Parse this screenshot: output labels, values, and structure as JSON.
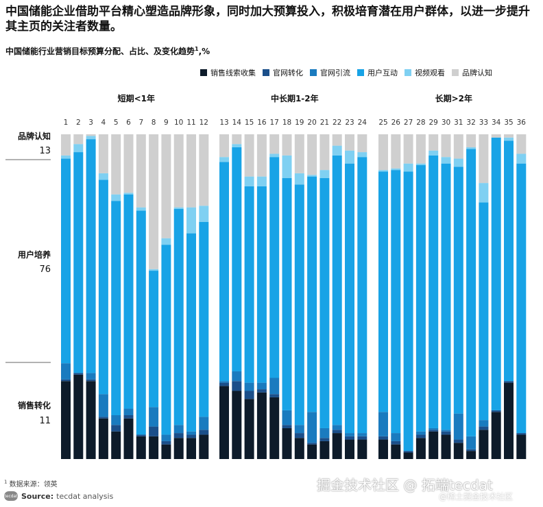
{
  "headline": "中国储能企业借助平台精心塑造品牌形象，同时加大预算投入，积极培育潜在用户群体，以进一步提升其主页的关注者数量。",
  "subtitle": "中国储能行业营销目标预算分配、占比、及变化趋势",
  "subtitle_sup": "1",
  "subtitle_unit": ",%",
  "footnote_mark": "1",
  "footnote": "数据来源：领英",
  "source_logo": "tecdat",
  "source_label": "Source:",
  "source_text": "tecdat analysis",
  "watermark": "掘金技术社区 @ 拓端tecdat",
  "watermark2": "@稀土掘金技术社区",
  "colors": {
    "销售线索收集": "#0d1b2a",
    "官网转化": "#1b4f8a",
    "官网引流": "#1a7bbf",
    "用户互动": "#18a3e6",
    "视频观看": "#7fd0f2",
    "品牌认知": "#cfcfcf",
    "divider": "#666666"
  },
  "chart_data": {
    "type": "stacked-bar",
    "title": "中国储能行业营销目标预算分配、占比、及变化趋势",
    "unit": "%",
    "legend_position": "top-right",
    "series_names": [
      "销售线索收集",
      "官网转化",
      "官网引流",
      "用户互动",
      "视频观看",
      "品牌认知"
    ],
    "groups": [
      {
        "label": "短期<1年",
        "categories": [
          "1",
          "2",
          "3",
          "4",
          "5",
          "6",
          "7",
          "8",
          "9",
          "10",
          "11",
          "12"
        ]
      },
      {
        "label": "中长期1-2年",
        "categories": [
          "13",
          "14",
          "15",
          "16",
          "17",
          "18",
          "19",
          "20",
          "21",
          "22",
          "23",
          "24"
        ]
      },
      {
        "label": "长期>2年",
        "categories": [
          "25",
          "26",
          "27",
          "28",
          "29",
          "30",
          "31",
          "32",
          "33",
          "34",
          "35",
          "36"
        ]
      }
    ],
    "bars": [
      [
        24,
        0.5,
        5,
        63,
        1,
        6.5
      ],
      [
        26,
        0.5,
        0,
        68,
        2.5,
        3
      ],
      [
        24,
        0.5,
        2,
        72,
        1,
        0.5
      ],
      [
        12.5,
        0.5,
        7,
        66,
        2,
        12
      ],
      [
        8.5,
        2,
        3,
        66,
        2,
        18.5
      ],
      [
        12.5,
        1,
        2,
        66,
        0.5,
        18
      ],
      [
        7,
        0.5,
        0,
        69,
        1,
        22.5
      ],
      [
        7,
        3,
        6,
        42,
        0.5,
        41.5
      ],
      [
        4.5,
        1,
        2,
        58.5,
        2,
        32
      ],
      [
        6.5,
        1.5,
        2.5,
        66.5,
        0.5,
        22.5
      ],
      [
        6.5,
        1,
        1,
        61,
        8,
        22.5
      ],
      [
        7.5,
        1.5,
        4,
        60,
        5,
        22
      ],
      [
        22.5,
        1,
        0.5,
        67.5,
        1.5,
        7
      ],
      [
        21,
        3,
        3,
        69,
        1,
        3
      ],
      [
        18.5,
        2.5,
        2.5,
        60.5,
        3,
        13
      ],
      [
        20.5,
        1,
        2,
        60.5,
        3,
        13
      ],
      [
        19,
        1,
        5,
        68,
        1,
        6
      ],
      [
        9.5,
        1,
        4.5,
        71.5,
        7,
        6.5
      ],
      [
        6.5,
        1.5,
        2.5,
        74,
        3.5,
        12
      ],
      [
        4.5,
        0.5,
        9.5,
        72.5,
        0.5,
        12.5
      ],
      [
        5.5,
        1,
        3,
        77,
        2.5,
        11
      ],
      [
        8,
        1,
        1.5,
        83,
        3,
        3.5
      ],
      [
        6,
        1,
        1,
        83,
        4,
        5
      ],
      [
        6,
        1,
        1,
        85,
        1.5,
        5.5
      ],
      [
        6,
        1,
        7.5,
        74,
        0.5,
        11
      ],
      [
        4.5,
        1,
        2.5,
        81,
        0.5,
        10.5
      ],
      [
        2,
        0.5,
        0,
        86,
        2.5,
        9
      ],
      [
        6.5,
        1,
        1,
        82,
        0.5,
        9
      ],
      [
        8.5,
        0.5,
        0.5,
        84,
        1.5,
        5
      ],
      [
        7.5,
        1,
        0.5,
        82,
        2,
        7
      ],
      [
        5,
        1,
        8,
        76,
        2.5,
        7.5
      ],
      [
        2.5,
        0.5,
        4,
        88.5,
        0.5,
        4
      ],
      [
        9,
        1,
        2,
        67,
        6,
        15
      ],
      [
        14.5,
        0.5,
        0,
        84,
        0,
        1
      ],
      [
        23.5,
        0.5,
        0,
        74,
        1,
        1
      ],
      [
        7.5,
        0.5,
        0,
        83,
        3,
        6
      ]
    ],
    "y_summary": [
      {
        "label": "品牌认知",
        "value": "13"
      },
      {
        "label": "用户培养",
        "value": "76"
      },
      {
        "label": "销售转化",
        "value": "11"
      }
    ],
    "ylim": [
      0,
      100
    ]
  }
}
